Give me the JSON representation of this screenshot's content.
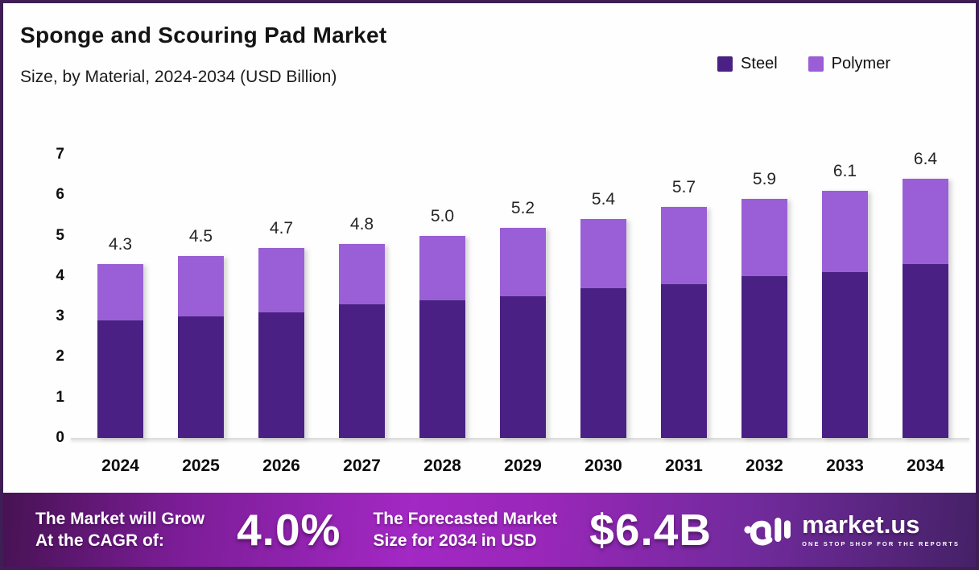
{
  "header": {
    "title": "Sponge and Scouring Pad Market",
    "subtitle": "Size, by Material, 2024-2034 (USD Billion)"
  },
  "legend": [
    {
      "label": "Steel",
      "color": "#4a2084"
    },
    {
      "label": "Polymer",
      "color": "#9a5fd6"
    }
  ],
  "chart_data": {
    "type": "bar",
    "stacked": true,
    "title": "Sponge and Scouring Pad Market Size, by Material, 2024-2034 (USD Billion)",
    "categories": [
      "2024",
      "2025",
      "2026",
      "2027",
      "2028",
      "2029",
      "2030",
      "2031",
      "2032",
      "2033",
      "2034"
    ],
    "series": [
      {
        "name": "Steel",
        "color": "#4a2084",
        "values": [
          2.9,
          3.0,
          3.1,
          3.3,
          3.4,
          3.5,
          3.7,
          3.8,
          4.0,
          4.1,
          4.3
        ]
      },
      {
        "name": "Polymer",
        "color": "#9a5fd6",
        "values": [
          1.4,
          1.5,
          1.6,
          1.5,
          1.6,
          1.7,
          1.7,
          1.9,
          1.9,
          2.0,
          2.1
        ]
      }
    ],
    "totals": [
      "4.3",
      "4.5",
      "4.7",
      "4.8",
      "5.0",
      "5.2",
      "5.4",
      "5.7",
      "5.9",
      "6.1",
      "6.4"
    ],
    "xlabel": "",
    "ylabel": "",
    "ylim": [
      0,
      7
    ],
    "yticks": [
      0,
      1,
      2,
      3,
      4,
      5,
      6,
      7
    ],
    "grid": false,
    "legend_position": "top-right"
  },
  "banner": {
    "cagr_label_line1": "The Market will Grow",
    "cagr_label_line2": "At the CAGR of:",
    "cagr_value": "4.0%",
    "forecast_label_line1": "The Forecasted Market",
    "forecast_label_line2": "Size for 2034 in USD",
    "forecast_value": "$6.4B",
    "brand": {
      "name": "market.us",
      "tagline": "ONE STOP SHOP FOR THE REPORTS"
    }
  }
}
